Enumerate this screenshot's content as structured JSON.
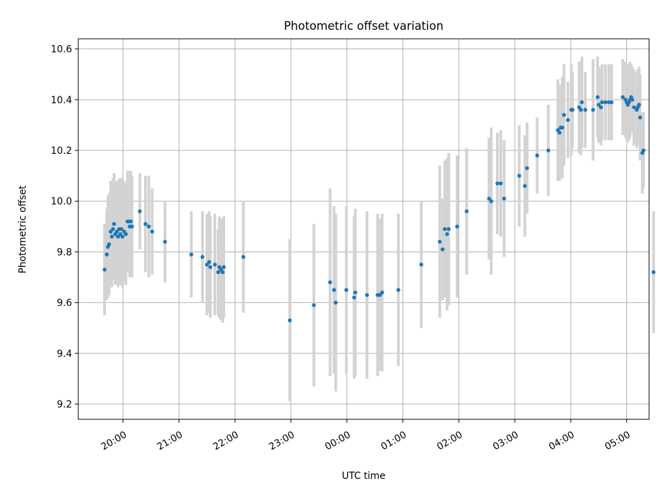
{
  "chart_data": {
    "type": "scatter",
    "title": "Photometric offset variation",
    "xlabel": "UTC time",
    "ylabel": "Photometric offset",
    "x_unit": "UTC hours (values beyond 24 fall after midnight)",
    "xlim": [
      19.2,
      29.4
    ],
    "ylim": [
      9.14,
      10.64
    ],
    "grid": true,
    "legend": "none",
    "x_ticks": [
      {
        "value": 20,
        "label": "20:00"
      },
      {
        "value": 21,
        "label": "21:00"
      },
      {
        "value": 22,
        "label": "22:00"
      },
      {
        "value": 23,
        "label": "23:00"
      },
      {
        "value": 24,
        "label": "00:00"
      },
      {
        "value": 25,
        "label": "01:00"
      },
      {
        "value": 26,
        "label": "02:00"
      },
      {
        "value": 27,
        "label": "03:00"
      },
      {
        "value": 28,
        "label": "04:00"
      },
      {
        "value": 29,
        "label": "05:00"
      }
    ],
    "y_ticks": [
      {
        "value": 9.2,
        "label": "9.2"
      },
      {
        "value": 9.4,
        "label": "9.4"
      },
      {
        "value": 9.6,
        "label": "9.6"
      },
      {
        "value": 9.8,
        "label": "9.8"
      },
      {
        "value": 10.0,
        "label": "10.0"
      },
      {
        "value": 10.2,
        "label": "10.2"
      },
      {
        "value": 10.4,
        "label": "10.4"
      },
      {
        "value": 10.6,
        "label": "10.6"
      }
    ],
    "colors": {
      "marker": "#1f77b4",
      "errorbar": "#d3d3d3",
      "grid": "#b0b0b0"
    },
    "series": [
      {
        "x": [
          19.67,
          19.71,
          19.73,
          19.75,
          19.78,
          19.8,
          19.82,
          19.84,
          19.86,
          19.89,
          19.91,
          19.93,
          19.95,
          19.97,
          19.99,
          20.02,
          20.05,
          20.08,
          20.1,
          20.12,
          20.14,
          20.16,
          20.3,
          20.4,
          20.46,
          20.52,
          20.75,
          21.22,
          21.42,
          21.5,
          21.54,
          21.56,
          21.64,
          21.7,
          21.72,
          21.75,
          21.78,
          21.8,
          22.15,
          22.98,
          23.41,
          23.7,
          23.77,
          23.8,
          23.99,
          24.13,
          24.15,
          24.36,
          24.55,
          24.59,
          24.63,
          24.92,
          25.33,
          25.66,
          25.71,
          25.75,
          25.79,
          25.82,
          25.97,
          26.14,
          26.54,
          26.58,
          26.69,
          26.75,
          26.81,
          27.08,
          27.18,
          27.22,
          27.4,
          27.6,
          27.77,
          27.8,
          27.82,
          27.85,
          27.88,
          27.95,
          28.01,
          28.03,
          28.15,
          28.18,
          28.2,
          28.26,
          28.4,
          28.48,
          28.5,
          28.54,
          28.56,
          28.62,
          28.68,
          28.73,
          28.93,
          28.98,
          29.0,
          29.02,
          29.04,
          29.06,
          29.08,
          29.1,
          29.13,
          29.18,
          29.2,
          29.22,
          29.24,
          29.28,
          29.3,
          29.48
        ],
        "y": [
          9.73,
          9.79,
          9.82,
          9.83,
          9.88,
          9.86,
          9.89,
          9.91,
          9.87,
          9.88,
          9.86,
          9.89,
          9.87,
          9.89,
          9.86,
          9.88,
          9.87,
          9.92,
          9.92,
          9.9,
          9.92,
          9.9,
          9.96,
          9.91,
          9.9,
          9.88,
          9.84,
          9.79,
          9.78,
          9.75,
          9.76,
          9.74,
          9.75,
          9.72,
          9.74,
          9.73,
          9.72,
          9.74,
          9.78,
          9.53,
          9.59,
          9.68,
          9.65,
          9.6,
          9.65,
          9.62,
          9.64,
          9.63,
          9.63,
          9.63,
          9.64,
          9.65,
          9.75,
          9.84,
          9.81,
          9.89,
          9.87,
          9.89,
          9.9,
          9.96,
          10.01,
          10.0,
          10.07,
          10.07,
          10.01,
          10.1,
          10.06,
          10.13,
          10.18,
          10.2,
          10.28,
          10.27,
          10.29,
          10.29,
          10.34,
          10.32,
          10.36,
          10.36,
          10.37,
          10.36,
          10.39,
          10.36,
          10.36,
          10.41,
          10.38,
          10.37,
          10.39,
          10.39,
          10.39,
          10.39,
          10.41,
          10.4,
          10.39,
          10.38,
          10.39,
          10.4,
          10.41,
          10.4,
          10.37,
          10.36,
          10.37,
          10.38,
          10.33,
          10.19,
          10.2,
          9.72
        ],
        "err": [
          0.18,
          0.18,
          0.2,
          0.2,
          0.2,
          0.2,
          0.2,
          0.2,
          0.2,
          0.2,
          0.2,
          0.2,
          0.2,
          0.2,
          0.2,
          0.2,
          0.2,
          0.2,
          0.2,
          0.2,
          0.2,
          0.2,
          0.15,
          0.19,
          0.2,
          0.17,
          0.16,
          0.17,
          0.18,
          0.2,
          0.2,
          0.2,
          0.2,
          0.17,
          0.2,
          0.2,
          0.2,
          0.2,
          0.22,
          0.32,
          0.32,
          0.37,
          0.33,
          0.35,
          0.33,
          0.32,
          0.33,
          0.33,
          0.32,
          0.3,
          0.31,
          0.3,
          0.25,
          0.3,
          0.2,
          0.27,
          0.3,
          0.3,
          0.28,
          0.25,
          0.24,
          0.29,
          0.2,
          0.21,
          0.23,
          0.2,
          0.2,
          0.18,
          0.15,
          0.18,
          0.2,
          0.19,
          0.13,
          0.2,
          0.2,
          0.15,
          0.18,
          0.15,
          0.18,
          0.18,
          0.18,
          0.15,
          0.2,
          0.16,
          0.15,
          0.15,
          0.15,
          0.15,
          0.15,
          0.15,
          0.15,
          0.15,
          0.15,
          0.15,
          0.15,
          0.15,
          0.13,
          0.13,
          0.15,
          0.15,
          0.15,
          0.15,
          0.17,
          0.16,
          0.15,
          0.24
        ]
      }
    ]
  }
}
